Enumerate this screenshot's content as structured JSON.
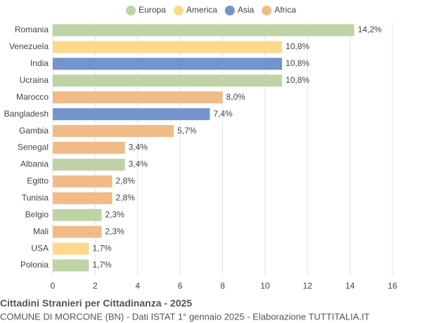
{
  "chart_data": {
    "type": "hbar",
    "title": "Cittadini Stranieri per Cittadinanza - 2025",
    "subtitle": "COMUNE DI MORCONE (BN) - Dati ISTAT 1° gennaio 2025 - Elaborazione TUTTITALIA.IT",
    "categories": [
      "Romania",
      "Venezuela",
      "India",
      "Ucraina",
      "Marocco",
      "Bangladesh",
      "Gambia",
      "Senegal",
      "Albania",
      "Egitto",
      "Tunisia",
      "Belgio",
      "Mali",
      "USA",
      "Polonia"
    ],
    "series": [
      {
        "name": "Europa",
        "color": "#bfd3a6",
        "values": [
          14.2,
          null,
          null,
          10.8,
          null,
          null,
          null,
          null,
          3.4,
          null,
          null,
          2.3,
          null,
          null,
          1.7
        ],
        "value_labels": [
          "14,2%",
          null,
          null,
          "10,8%",
          null,
          null,
          null,
          null,
          "3,4%",
          null,
          null,
          "2,3%",
          null,
          null,
          "1,7%"
        ]
      },
      {
        "name": "America",
        "color": "#ffd98b",
        "values": [
          null,
          10.8,
          null,
          null,
          null,
          null,
          null,
          null,
          null,
          null,
          null,
          null,
          null,
          1.7,
          null
        ],
        "value_labels": [
          null,
          "10,8%",
          null,
          null,
          null,
          null,
          null,
          null,
          null,
          null,
          null,
          null,
          null,
          "1,7%",
          null
        ]
      },
      {
        "name": "Asia",
        "color": "#7394cc",
        "values": [
          null,
          null,
          10.8,
          null,
          null,
          7.4,
          null,
          null,
          null,
          null,
          null,
          null,
          null,
          null,
          null
        ],
        "value_labels": [
          null,
          null,
          "10,8%",
          null,
          null,
          "7,4%",
          null,
          null,
          null,
          null,
          null,
          null,
          null,
          null,
          null
        ]
      },
      {
        "name": "Africa",
        "color": "#f1bb88",
        "values": [
          null,
          null,
          null,
          null,
          8.0,
          null,
          5.7,
          3.4,
          null,
          2.8,
          2.8,
          null,
          2.3,
          null,
          null
        ],
        "value_labels": [
          null,
          null,
          null,
          null,
          "8,0%",
          null,
          "5,7%",
          "3,4%",
          null,
          "2,8%",
          "2,8%",
          null,
          "2,3%",
          null,
          null
        ]
      }
    ],
    "xlim": [
      0,
      16
    ],
    "xticks": [
      0,
      2,
      4,
      6,
      8,
      10,
      12,
      14,
      16
    ],
    "grid": true,
    "legend": "top"
  }
}
